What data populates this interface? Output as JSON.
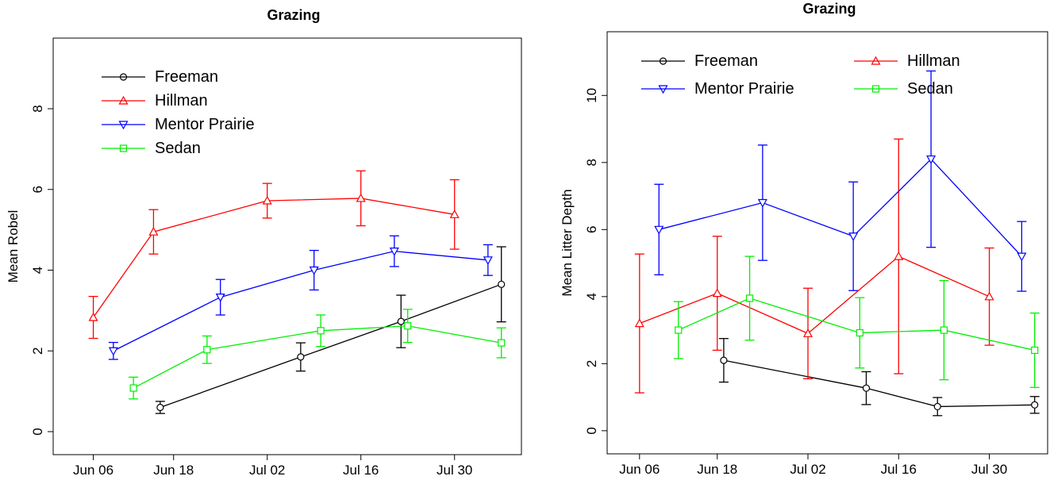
{
  "chart_data": [
    {
      "type": "line",
      "title": "Grazing",
      "y_label": "Mean Robel",
      "xlim": [
        "May 31",
        "Aug 09"
      ],
      "xticks": [
        "Jun 06",
        "Jun 18",
        "Jul 02",
        "Jul 16",
        "Jul 30"
      ],
      "ylim": [
        -0.57,
        9.75
      ],
      "yticks": [
        0,
        2,
        4,
        6,
        8
      ],
      "series": [
        {
          "name": "Freeman",
          "color": "#000000",
          "marker": "circle",
          "x": [
            "Jun 16",
            "Jul 07",
            "Jul 22",
            "Aug 06"
          ],
          "values": [
            0.6,
            1.85,
            2.73,
            3.65
          ],
          "errors": [
            0.15,
            0.35,
            0.65,
            0.93
          ]
        },
        {
          "name": "Hillman",
          "color": "#ff0000",
          "marker": "triangle-up",
          "x": [
            "Jun 06",
            "Jun 15",
            "Jul 02",
            "Jul 16",
            "Jul 30"
          ],
          "values": [
            2.83,
            4.95,
            5.72,
            5.78,
            5.38
          ],
          "errors": [
            0.52,
            0.55,
            0.43,
            0.68,
            0.86
          ]
        },
        {
          "name": "Mentor Prairie",
          "color": "#0000ff",
          "marker": "triangle-down",
          "x": [
            "Jun 09",
            "Jun 25",
            "Jul 09",
            "Jul 21",
            "Aug 04"
          ],
          "values": [
            2.0,
            3.33,
            4.0,
            4.47,
            4.25
          ],
          "errors": [
            0.21,
            0.44,
            0.49,
            0.38,
            0.38
          ]
        },
        {
          "name": "Sedan",
          "color": "#00ee00",
          "marker": "square",
          "x": [
            "Jun 12",
            "Jun 23",
            "Jul 10",
            "Jul 23",
            "Aug 06"
          ],
          "values": [
            1.08,
            2.03,
            2.5,
            2.62,
            2.2
          ],
          "errors": [
            0.27,
            0.34,
            0.39,
            0.41,
            0.37
          ]
        }
      ]
    },
    {
      "type": "line",
      "title": "Grazing",
      "y_label": "Mean Litter Depth",
      "xlim": [
        "Jun 01",
        "Aug 08"
      ],
      "xticks": [
        "Jun 06",
        "Jun 18",
        "Jul 02",
        "Jul 16",
        "Jul 30"
      ],
      "ylim": [
        -0.69,
        11.9
      ],
      "yticks": [
        0,
        2,
        4,
        6,
        8,
        10
      ],
      "series": [
        {
          "name": "Freeman",
          "color": "#000000",
          "marker": "circle",
          "x": [
            "Jun 19",
            "Jul 11",
            "Jul 22",
            "Aug 06"
          ],
          "values": [
            2.1,
            1.27,
            0.72,
            0.77
          ],
          "errors": [
            0.65,
            0.49,
            0.27,
            0.25
          ]
        },
        {
          "name": "Hillman",
          "color": "#ff0000",
          "marker": "triangle-up",
          "x": [
            "Jun 06",
            "Jun 18",
            "Jul 02",
            "Jul 16",
            "Jul 30"
          ],
          "values": [
            3.2,
            4.1,
            2.9,
            5.2,
            4.0
          ],
          "errors": [
            2.07,
            1.7,
            1.35,
            3.5,
            1.45
          ]
        },
        {
          "name": "Mentor Prairie",
          "color": "#0000ff",
          "marker": "triangle-down",
          "x": [
            "Jun 09",
            "Jun 25",
            "Jul 09",
            "Jul 21",
            "Aug 04"
          ],
          "values": [
            6.0,
            6.8,
            5.8,
            8.1,
            5.2
          ],
          "errors": [
            1.35,
            1.72,
            1.62,
            2.63,
            1.04
          ]
        },
        {
          "name": "Sedan",
          "color": "#00ee00",
          "marker": "square",
          "x": [
            "Jun 12",
            "Jun 23",
            "Jul 10",
            "Jul 23",
            "Aug 06"
          ],
          "values": [
            3.0,
            3.95,
            2.92,
            3.0,
            2.4
          ],
          "errors": [
            0.85,
            1.25,
            1.05,
            1.48,
            1.11
          ]
        }
      ]
    }
  ]
}
